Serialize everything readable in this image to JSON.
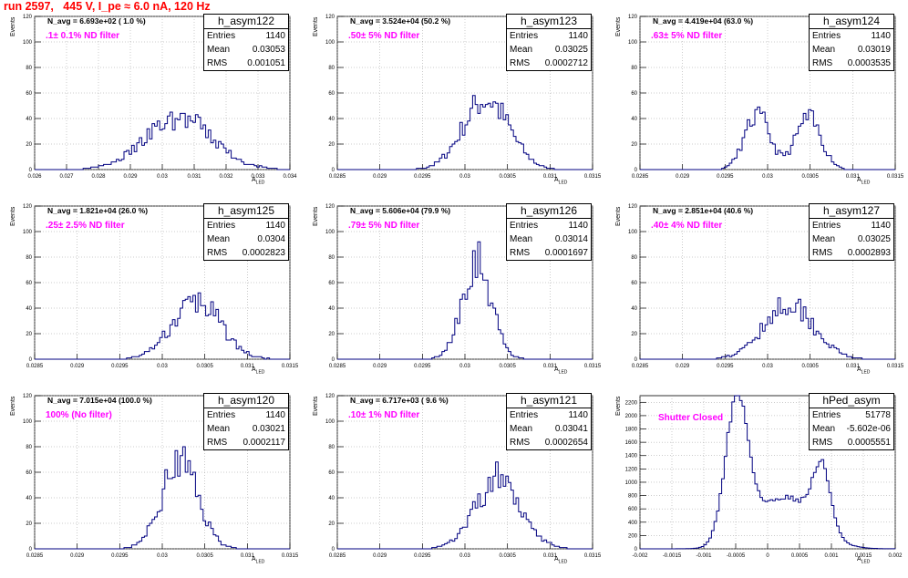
{
  "title": "run 2597,   445 V, I_pe ≈ 6.0 nA, 120 Hz",
  "chart_data": [
    {
      "type": "bar",
      "hist_name": "h_asym122",
      "navg": "N_avg = 6.693e+02 ( 1.0 %)",
      "filter": ".1± 0.1% ND filter",
      "stats": {
        "entries": "1140",
        "mean": "0.03053",
        "rms": "0.001051"
      },
      "xlim": [
        0.026,
        0.034
      ],
      "xticks": [
        "0.026",
        "0.027",
        "0.028",
        "0.029",
        "0.03",
        "0.031",
        "0.032",
        "0.033",
        "0.034"
      ],
      "ylim": [
        0,
        120
      ],
      "yticks": [
        "0",
        "20",
        "40",
        "60",
        "80",
        "100",
        "120"
      ],
      "ylabel": "Events",
      "xlabel": "A",
      "xlabel_sub": "LED",
      "hist": {
        "mean": 0.03053,
        "rms": 0.001051,
        "peak": 40,
        "seed": 3
      }
    },
    {
      "type": "bar",
      "hist_name": "h_asym123",
      "navg": "N_avg = 3.524e+04 (50.2 %)",
      "filter": ".50± 5% ND filter",
      "stats": {
        "entries": "1140",
        "mean": "0.03025",
        "rms": "0.0002712"
      },
      "xlim": [
        0.0285,
        0.0315
      ],
      "xticks": [
        "0.0285",
        "0.029",
        "0.0295",
        "0.03",
        "0.0305",
        "0.031",
        "0.0315"
      ],
      "ylim": [
        0,
        120
      ],
      "yticks": [
        "0",
        "20",
        "40",
        "60",
        "80",
        "100",
        "120"
      ],
      "ylabel": "Events",
      "xlabel": "A",
      "xlabel_sub": "LED",
      "hist": {
        "mean": 0.03025,
        "rms": 0.0002712,
        "peak": 55,
        "seed": 7
      }
    },
    {
      "type": "bar",
      "hist_name": "h_asym124",
      "navg": "N_avg = 4.419e+04 (63.0 %)",
      "filter": ".63± 5% ND filter",
      "stats": {
        "entries": "1140",
        "mean": "0.03019",
        "rms": "0.0003535"
      },
      "xlim": [
        0.0285,
        0.0315
      ],
      "xticks": [
        "0.0285",
        "0.029",
        "0.0295",
        "0.03",
        "0.0305",
        "0.031",
        "0.0315"
      ],
      "ylim": [
        0,
        120
      ],
      "yticks": [
        "0",
        "20",
        "40",
        "60",
        "80",
        "100",
        "120"
      ],
      "ylabel": "Events",
      "xlabel": "A",
      "xlabel_sub": "LED",
      "hist": {
        "double": true,
        "m1": 0.02988,
        "s1": 0.00015,
        "p1": 42,
        "m2": 0.03048,
        "s2": 0.00015,
        "p2": 40,
        "seed": 11
      }
    },
    {
      "type": "bar",
      "hist_name": "h_asym125",
      "navg": "N_avg = 1.821e+04 (26.0 %)",
      "filter": ".25± 2.5% ND filter",
      "stats": {
        "entries": "1140",
        "mean": "0.0304",
        "rms": "0.0002823"
      },
      "xlim": [
        0.0285,
        0.0315
      ],
      "xticks": [
        "0.0285",
        "0.029",
        "0.0295",
        "0.03",
        "0.0305",
        "0.031",
        "0.0315"
      ],
      "ylim": [
        0,
        120
      ],
      "yticks": [
        "0",
        "20",
        "40",
        "60",
        "80",
        "100",
        "120"
      ],
      "ylabel": "Events",
      "xlabel": "A",
      "xlabel_sub": "LED",
      "hist": {
        "mean": 0.0304,
        "rms": 0.0002823,
        "peak": 45,
        "seed": 13
      }
    },
    {
      "type": "bar",
      "hist_name": "h_asym126",
      "navg": "N_avg = 5.606e+04 (79.9 %)",
      "filter": ".79± 5% ND filter",
      "stats": {
        "entries": "1140",
        "mean": "0.03014",
        "rms": "0.0001697"
      },
      "xlim": [
        0.0285,
        0.0315
      ],
      "xticks": [
        "0.0285",
        "0.029",
        "0.0295",
        "0.03",
        "0.0305",
        "0.031",
        "0.0315"
      ],
      "ylim": [
        0,
        120
      ],
      "yticks": [
        "0",
        "20",
        "40",
        "60",
        "80",
        "100",
        "120"
      ],
      "ylabel": "Events",
      "xlabel": "A",
      "xlabel_sub": "LED",
      "hist": {
        "mean": 0.03014,
        "rms": 0.0001697,
        "peak": 80,
        "seed": 17
      }
    },
    {
      "type": "bar",
      "hist_name": "h_asym127",
      "navg": "N_avg = 2.851e+04 (40.6 %)",
      "filter": ".40± 4% ND filter",
      "stats": {
        "entries": "1140",
        "mean": "0.03025",
        "rms": "0.0002893"
      },
      "xlim": [
        0.0285,
        0.0315
      ],
      "xticks": [
        "0.0285",
        "0.029",
        "0.0295",
        "0.03",
        "0.0305",
        "0.031",
        "0.0315"
      ],
      "ylim": [
        0,
        120
      ],
      "yticks": [
        "0",
        "20",
        "40",
        "60",
        "80",
        "100",
        "120"
      ],
      "ylabel": "Events",
      "xlabel": "A",
      "xlabel_sub": "LED",
      "hist": {
        "mean": 0.03025,
        "rms": 0.0002893,
        "peak": 45,
        "seed": 19
      }
    },
    {
      "type": "bar",
      "hist_name": "h_asym120",
      "navg": "N_avg = 7.015e+04 (100.0 %)",
      "filter": "100% (No filter)",
      "stats": {
        "entries": "1140",
        "mean": "0.03021",
        "rms": "0.0002117"
      },
      "xlim": [
        0.0285,
        0.0315
      ],
      "xticks": [
        "0.0285",
        "0.029",
        "0.0295",
        "0.03",
        "0.0305",
        "0.031",
        "0.0315"
      ],
      "ylim": [
        0,
        120
      ],
      "yticks": [
        "0",
        "20",
        "40",
        "60",
        "80",
        "100",
        "120"
      ],
      "ylabel": "Events",
      "xlabel": "A",
      "xlabel_sub": "LED",
      "hist": {
        "mean": 0.03021,
        "rms": 0.0002117,
        "peak": 68,
        "seed": 23
      }
    },
    {
      "type": "bar",
      "hist_name": "h_asym121",
      "navg": "N_avg = 6.717e+03 ( 9.6 %)",
      "filter": ".10± 1% ND filter",
      "stats": {
        "entries": "1140",
        "mean": "0.03041",
        "rms": "0.0002654"
      },
      "xlim": [
        0.0285,
        0.0315
      ],
      "xticks": [
        "0.0285",
        "0.029",
        "0.0295",
        "0.03",
        "0.0305",
        "0.031",
        "0.0315"
      ],
      "ylim": [
        0,
        120
      ],
      "yticks": [
        "0",
        "20",
        "40",
        "60",
        "80",
        "100",
        "120"
      ],
      "ylabel": "Events",
      "xlabel": "A",
      "xlabel_sub": "LED",
      "hist": {
        "mean": 0.0304,
        "rms": 0.0002654,
        "peak": 55,
        "seed": 29
      }
    },
    {
      "type": "bar",
      "hist_name": "hPed_asym",
      "navg": "",
      "filter": "Shutter Closed",
      "stats": {
        "entries": "51778",
        "mean": "-5.602e-06",
        "rms": "0.0005551"
      },
      "xlim": [
        -0.002,
        0.002
      ],
      "xticks": [
        "-0.002",
        "-0.0015",
        "-0.001",
        "-0.0005",
        "0",
        "0.0005",
        "0.001",
        "0.0015",
        "0.002"
      ],
      "ylim": [
        0,
        2300
      ],
      "yticks": [
        "0",
        "200",
        "400",
        "600",
        "800",
        "1000",
        "1200",
        "1400",
        "1600",
        "1800",
        "2000",
        "2200"
      ],
      "ylabel": "Events",
      "xlabel": "A",
      "xlabel_sub": "LED",
      "hist": {
        "ped": true,
        "seed": 31
      }
    }
  ]
}
